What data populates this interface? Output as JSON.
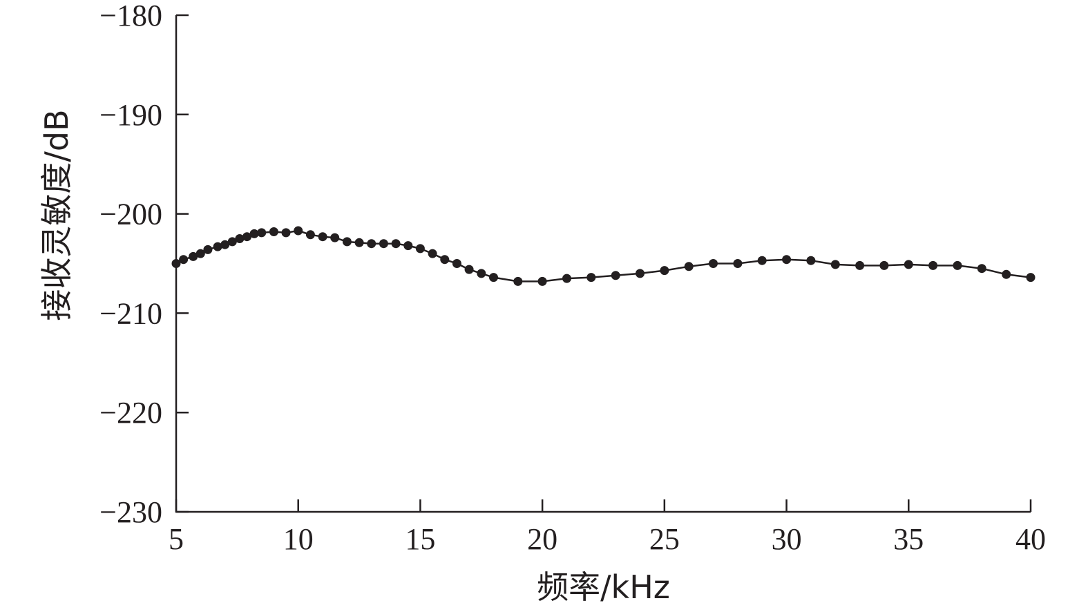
{
  "chart_data": {
    "type": "line",
    "title": "",
    "xlabel": "频率/kHz",
    "ylabel": "接收灵敏度/dB",
    "xlim": [
      5,
      40
    ],
    "ylim": [
      -230,
      -180
    ],
    "x_ticks": [
      5,
      10,
      15,
      20,
      25,
      30,
      35,
      40
    ],
    "y_ticks": [
      -180,
      -190,
      -200,
      -210,
      -220,
      -230
    ],
    "x_tick_labels": [
      "5",
      "10",
      "15",
      "20",
      "25",
      "30",
      "35",
      "40"
    ],
    "y_tick_labels": [
      "−180",
      "−190",
      "−200",
      "−210",
      "−220",
      "−230"
    ],
    "grid": false,
    "line_color": "#231f20",
    "marker": "filled-circle",
    "series": [
      {
        "x": [
          5.0,
          5.3,
          5.7,
          6.0,
          6.3,
          6.7,
          7.0,
          7.3,
          7.6,
          7.9,
          8.2,
          8.5,
          9.0,
          9.5,
          10.0,
          10.5,
          11.0,
          11.5,
          12.0,
          12.5,
          13.0,
          13.5,
          14.0,
          14.5,
          15.0,
          15.5,
          16.0,
          16.5,
          17.0,
          17.5,
          18.0,
          19.0,
          20.0,
          21.0,
          22.0,
          23.0,
          24.0,
          25.0,
          26.0,
          27.0,
          28.0,
          29.0,
          30.0,
          31.0,
          32.0,
          33.0,
          34.0,
          35.0,
          36.0,
          37.0,
          38.0,
          39.0,
          40.0
        ],
        "y": [
          -205.0,
          -204.6,
          -204.3,
          -204.0,
          -203.6,
          -203.3,
          -203.1,
          -202.8,
          -202.5,
          -202.3,
          -202.0,
          -201.9,
          -201.8,
          -201.9,
          -201.7,
          -202.1,
          -202.3,
          -202.4,
          -202.8,
          -202.9,
          -203.0,
          -203.0,
          -203.0,
          -203.2,
          -203.5,
          -204.0,
          -204.6,
          -205.0,
          -205.6,
          -206.0,
          -206.4,
          -206.8,
          -206.8,
          -206.5,
          -206.4,
          -206.2,
          -206.0,
          -205.7,
          -205.3,
          -205.0,
          -205.0,
          -204.7,
          -204.6,
          -204.7,
          -205.1,
          -205.2,
          -205.2,
          -205.1,
          -205.2,
          -205.2,
          -205.5,
          -206.1,
          -206.4
        ]
      }
    ]
  }
}
